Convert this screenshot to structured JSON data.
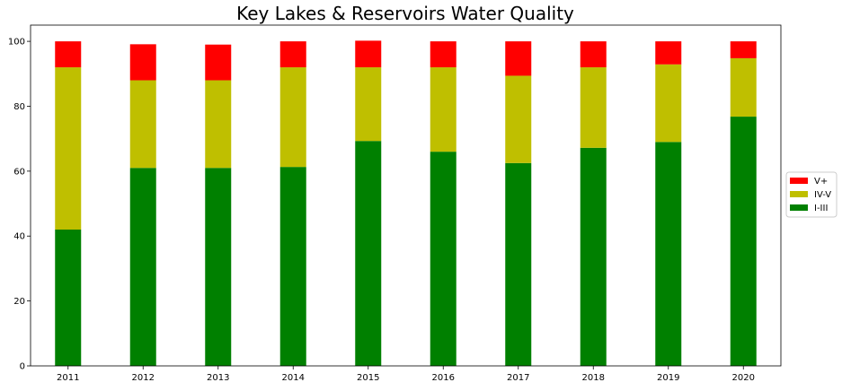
{
  "chart_data": {
    "type": "bar",
    "stacked": true,
    "title": "Key Lakes & Reservoirs Water Quality",
    "xlabel": "",
    "ylabel": "",
    "ylim": [
      0,
      105
    ],
    "yticks": [
      0,
      20,
      40,
      60,
      80,
      100
    ],
    "categories": [
      "2011",
      "2012",
      "2013",
      "2014",
      "2015",
      "2016",
      "2017",
      "2018",
      "2019",
      "2020"
    ],
    "series": [
      {
        "name": "I-III",
        "color": "#008000",
        "values": [
          42.0,
          61.0,
          61.0,
          61.3,
          69.3,
          66.0,
          62.5,
          67.2,
          69.0,
          76.8
        ]
      },
      {
        "name": "IV-V",
        "color": "#bfbf00",
        "values": [
          50.0,
          27.0,
          27.0,
          30.7,
          22.7,
          26.0,
          26.9,
          24.8,
          23.9,
          18.0
        ]
      },
      {
        "name": "V+",
        "color": "#ff0000",
        "values": [
          8.0,
          11.1,
          11.0,
          8.0,
          8.2,
          8.0,
          10.6,
          8.0,
          7.1,
          5.2
        ]
      }
    ],
    "legend": {
      "position": "center-right",
      "order": [
        "V+",
        "IV-V",
        "I-III"
      ]
    },
    "grid": false
  }
}
